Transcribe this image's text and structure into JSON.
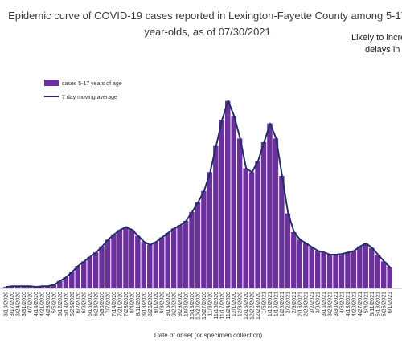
{
  "chart_data": {
    "type": "bar",
    "title_line1": "Epidemic curve of COVID-19 cases reported in Lexington-Fayette County among 5-17",
    "title_line2": "year-olds, as of 07/30/2021",
    "note_line1": "Likely to incre",
    "note_line2": "delays in",
    "xlabel": "Date of onset (or specimen collection)",
    "ylabel": "",
    "grid": false,
    "legend_position": "top-left",
    "colors": {
      "bars": "#6b2fa0",
      "line": "#1f2f66"
    },
    "series": [
      {
        "name": "cases 5-17 years of age",
        "kind": "bar"
      },
      {
        "name": "7 day moving average",
        "kind": "line"
      }
    ],
    "tick_labels": [
      "3/10/2020",
      "3/17/2020",
      "3/24/2020",
      "3/31/2020",
      "4/7/2020",
      "4/14/2020",
      "4/21/2020",
      "4/28/2020",
      "5/5/2020",
      "5/12/2020",
      "5/19/2020",
      "5/26/2020",
      "6/2/2020",
      "6/9/2020",
      "6/16/2020",
      "6/23/2020",
      "6/30/2020",
      "7/7/2020",
      "7/14/2020",
      "7/21/2020",
      "7/28/2020",
      "8/4/2020",
      "8/11/2020",
      "8/18/2020",
      "8/25/2020",
      "9/1/2020",
      "9/8/2020",
      "9/15/2020",
      "9/22/2020",
      "9/29/2020",
      "10/6/2020",
      "10/13/2020",
      "10/20/2020",
      "10/27/2020",
      "11/3/2020",
      "11/10/2020",
      "11/17/2020",
      "11/24/2020",
      "12/1/2020",
      "12/8/2020",
      "12/15/2020",
      "12/22/2020",
      "12/29/2020",
      "1/5/2021",
      "1/12/2021",
      "1/19/2021",
      "1/26/2021",
      "2/2/2021",
      "2/9/2021",
      "2/16/2021",
      "2/23/2021",
      "3/2/2021",
      "3/9/2021",
      "3/16/2021",
      "3/23/2021",
      "3/30/2021",
      "4/6/2021",
      "4/13/2021",
      "4/20/2021",
      "4/27/2021",
      "5/4/2021",
      "5/11/2021",
      "5/18/2021",
      "5/25/2021",
      "6/1/2021"
    ],
    "weekly_average": [
      0.2,
      0.3,
      0.3,
      0.3,
      0.3,
      0.2,
      0.3,
      0.3,
      0.5,
      1.0,
      1.5,
      2.2,
      3.0,
      3.6,
      4.2,
      4.8,
      5.6,
      6.5,
      7.2,
      7.8,
      8.2,
      7.8,
      7.0,
      6.2,
      5.8,
      6.2,
      6.8,
      7.4,
      8.0,
      8.4,
      9.0,
      10.2,
      11.5,
      13.0,
      15.5,
      19.0,
      22.5,
      25.0,
      23.0,
      20.0,
      16.0,
      15.5,
      17.0,
      19.5,
      22.0,
      20.0,
      15.0,
      10.0,
      7.5,
      6.5,
      6.0,
      5.5,
      5.0,
      4.8,
      4.5,
      4.5,
      4.6,
      4.8,
      5.0,
      5.6,
      6.0,
      5.4,
      4.5,
      3.6,
      2.8
    ]
  }
}
